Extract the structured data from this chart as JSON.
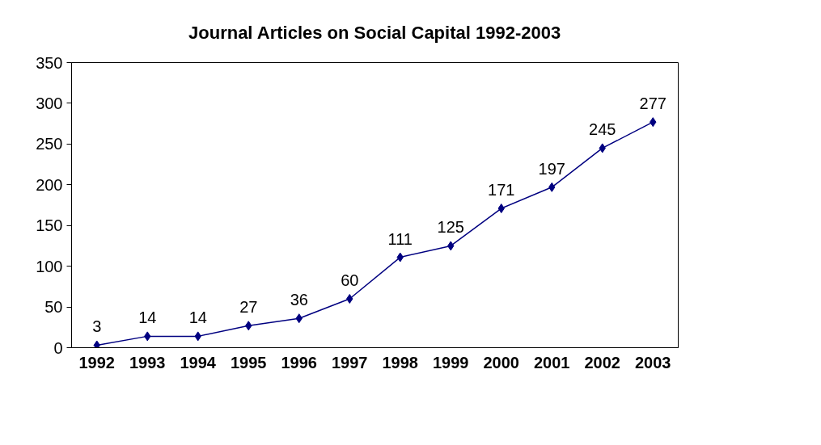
{
  "chart_data": {
    "type": "line",
    "title": "Journal Articles on Social Capital 1992-2003",
    "categories": [
      "1992",
      "1993",
      "1994",
      "1995",
      "1996",
      "1997",
      "1998",
      "1999",
      "2000",
      "2001",
      "2002",
      "2003"
    ],
    "series": [
      {
        "color": "#000080",
        "values": [
          3,
          14,
          14,
          27,
          36,
          60,
          111,
          125,
          171,
          197,
          245,
          277
        ]
      }
    ],
    "ylim": [
      0,
      350
    ],
    "yticks": [
      0,
      50,
      100,
      150,
      200,
      250,
      300,
      350
    ],
    "grid": false,
    "marker": "diamond",
    "line_style": "solid",
    "data_labels": true
  }
}
